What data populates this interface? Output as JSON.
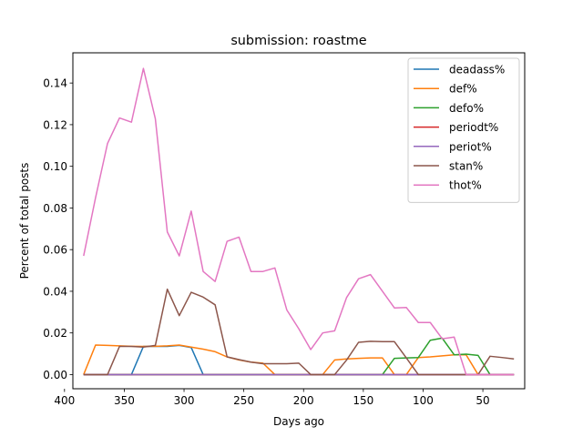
{
  "chart_data": {
    "type": "line",
    "title": "submission: roastme",
    "xlabel": "Days ago",
    "ylabel": "Percent of total posts",
    "xlim": [
      393,
      15
    ],
    "ylim": [
      -0.0068,
      0.1545
    ],
    "x_inverted": true,
    "xticks": [
      400,
      350,
      300,
      250,
      200,
      150,
      100,
      50
    ],
    "xtick_labels": [
      "400",
      "350",
      "300",
      "250",
      "200",
      "150",
      "100",
      "50"
    ],
    "yticks": [
      0.0,
      0.02,
      0.04,
      0.06,
      0.08,
      0.1,
      0.12,
      0.14
    ],
    "ytick_labels": [
      "0.00",
      "0.02",
      "0.04",
      "0.06",
      "0.08",
      "0.10",
      "0.12",
      "0.14"
    ],
    "grid": false,
    "legend_position": "top-right",
    "x": [
      384,
      374,
      364,
      354,
      344,
      334,
      324,
      314,
      304,
      294,
      284,
      274,
      264,
      254,
      244,
      234,
      224,
      214,
      204,
      194,
      184,
      174,
      164,
      154,
      144,
      134,
      124,
      114,
      104,
      94,
      84,
      74,
      64,
      54,
      44,
      34,
      24
    ],
    "series": [
      {
        "name": "deadass%",
        "color": "#1f77b4",
        "values": [
          0,
          0,
          0,
          0,
          0,
          0.0135,
          0.0135,
          0.0135,
          0.014,
          0.013,
          0,
          0,
          0,
          0,
          0,
          0,
          0,
          0,
          0,
          0,
          0,
          0,
          0,
          0,
          0,
          0,
          0,
          0,
          0,
          0,
          0,
          0,
          0,
          0,
          0,
          0,
          0
        ]
      },
      {
        "name": "def%",
        "color": "#ff7f0e",
        "values": [
          0,
          0.0142,
          0.014,
          0.0138,
          0.0136,
          0.0135,
          0.0136,
          0.0138,
          0.0142,
          0.0132,
          0.0122,
          0.011,
          0.0085,
          0.007,
          0.006,
          0.0055,
          0,
          0,
          0,
          0,
          0,
          0.007,
          0.0075,
          0.0078,
          0.008,
          0.008,
          0,
          0,
          0.0082,
          0.0085,
          0.009,
          0.0095,
          0.0095,
          0,
          0,
          0,
          0
        ]
      },
      {
        "name": "defo%",
        "color": "#2ca02c",
        "values": [
          0,
          0,
          0,
          0,
          0,
          0,
          0,
          0,
          0,
          0,
          0,
          0,
          0,
          0,
          0,
          0,
          0,
          0,
          0,
          0,
          0,
          0,
          0,
          0,
          0,
          0,
          0.0078,
          0.008,
          0.0082,
          0.0165,
          0.0175,
          0.0095,
          0.0098,
          0.0092,
          0,
          0,
          0
        ]
      },
      {
        "name": "periodt%",
        "color": "#d62728",
        "values": [
          0,
          0,
          0,
          0,
          0,
          0,
          0,
          0,
          0,
          0,
          0,
          0,
          0,
          0,
          0,
          0,
          0,
          0,
          0,
          0,
          0,
          0,
          0,
          0,
          0,
          0,
          0,
          0,
          0,
          0,
          0,
          0,
          0,
          0,
          0,
          0,
          0
        ]
      },
      {
        "name": "periot%",
        "color": "#9467bd",
        "values": [
          0,
          0,
          0,
          0,
          0,
          0,
          0,
          0,
          0,
          0,
          0,
          0,
          0,
          0,
          0,
          0,
          0,
          0,
          0,
          0,
          0,
          0,
          0,
          0,
          0,
          0,
          0,
          0,
          0,
          0,
          0,
          0,
          0,
          0,
          0,
          0,
          0
        ]
      },
      {
        "name": "stan%",
        "color": "#8c564b",
        "values": [
          0,
          0,
          0,
          0.0135,
          0.0135,
          0.0132,
          0.014,
          0.041,
          0.0283,
          0.0395,
          0.0372,
          0.0335,
          0.0085,
          0.0072,
          0.006,
          0.0052,
          0.0052,
          0.0052,
          0.0055,
          0,
          0,
          0,
          0.007,
          0.0155,
          0.016,
          0.0158,
          0.0158,
          0.008,
          0,
          0,
          0,
          0,
          0,
          0,
          0.0088,
          0.0082,
          0.0075
        ]
      },
      {
        "name": "thot%",
        "color": "#e377c2",
        "values": [
          0.057,
          0.085,
          0.111,
          0.1232,
          0.1212,
          0.147,
          0.1228,
          0.0685,
          0.057,
          0.0785,
          0.0495,
          0.0447,
          0.064,
          0.066,
          0.0495,
          0.0495,
          0.0512,
          0.031,
          0.022,
          0.012,
          0.02,
          0.021,
          0.037,
          0.046,
          0.048,
          0.04,
          0.032,
          0.0322,
          0.025,
          0.025,
          0.0172,
          0.018,
          0,
          0,
          0,
          0,
          0
        ]
      }
    ]
  }
}
